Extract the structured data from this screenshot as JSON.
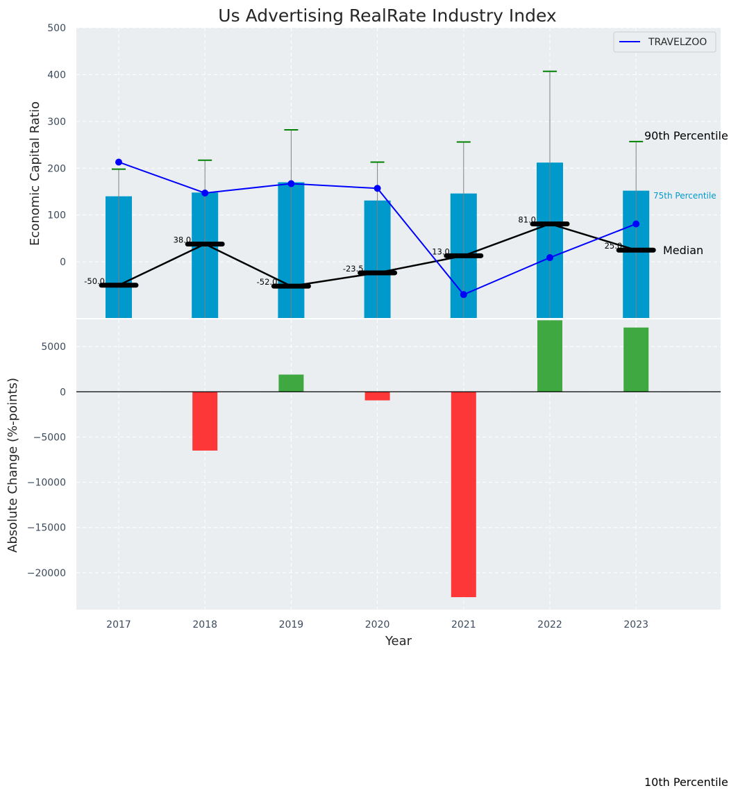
{
  "chart_data": [
    {
      "type": "bar",
      "title": "Us Advertising RealRate Industry Index",
      "xlabel": "",
      "ylabel": "Economic Capital Ratio",
      "ylim": [
        -120,
        500
      ],
      "yticks": [
        0,
        100,
        200,
        300,
        400,
        500
      ],
      "categories": [
        "2017",
        "2018",
        "2019",
        "2020",
        "2021",
        "2022",
        "2023"
      ],
      "percentile_75": [
        140,
        148,
        170,
        131,
        146,
        212,
        152
      ],
      "percentile_90": [
        198,
        217,
        282,
        213,
        256,
        407,
        257
      ],
      "median": [
        -50.0,
        38.0,
        -52.0,
        -23.5,
        13.0,
        81.0,
        25.0
      ],
      "median_labels": [
        "-50.0",
        "38.0",
        "-52.0",
        "-23.5",
        "13.0",
        "81.0",
        "25.0"
      ],
      "series": [
        {
          "name": "TRAVELZOO",
          "values": [
            213,
            147,
            167,
            157,
            -70,
            9,
            81
          ],
          "color": "#0000ff"
        }
      ],
      "annotations": {
        "p90": "90th Percentile",
        "p75": "75th Percentile",
        "median": "Median",
        "p10": "10th Percentile"
      },
      "legend": "top-right",
      "grid": true
    },
    {
      "type": "bar",
      "xlabel": "Year",
      "ylabel": "Absolute Change (%-points)",
      "ylim": [
        -24000,
        8000
      ],
      "yticks": [
        -20000,
        -15000,
        -10000,
        -5000,
        0,
        5000
      ],
      "ytick_labels": [
        "−20000",
        "−15000",
        "−10000",
        "−5000",
        "0",
        "5000"
      ],
      "categories": [
        "2017",
        "2018",
        "2019",
        "2020",
        "2021",
        "2022",
        "2023"
      ],
      "values": [
        0,
        -6500,
        1900,
        -950,
        -22700,
        7900,
        7100
      ],
      "positive_color": "#2ca02c",
      "negative_color": "#ff2222",
      "grid": true
    }
  ],
  "colors": {
    "plot_bg": "#eaeef0",
    "bar_p75": "#0099cc",
    "median": "#000000",
    "whisker": "#008000",
    "grid": "#ffffff"
  }
}
